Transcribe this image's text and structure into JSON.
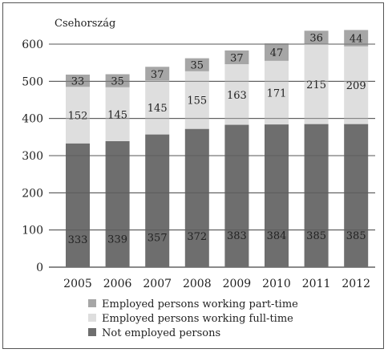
{
  "chart_data": {
    "type": "bar",
    "stacked": true,
    "title": "Csehország",
    "categories": [
      "2005",
      "2006",
      "2007",
      "2008",
      "2009",
      "2010",
      "2011",
      "2012"
    ],
    "series": [
      {
        "name": "Not employed persons",
        "values": [
          333,
          339,
          357,
          372,
          383,
          384,
          385,
          385
        ],
        "color": "#6e6e6e"
      },
      {
        "name": "Employed persons working full-time",
        "values": [
          152,
          145,
          145,
          155,
          163,
          171,
          215,
          209
        ],
        "color": "#dedede"
      },
      {
        "name": "Employed persons working part-time",
        "values": [
          33,
          35,
          37,
          35,
          37,
          47,
          36,
          44
        ],
        "color": "#a6a6a6"
      }
    ],
    "yticks": [
      0,
      100,
      200,
      300,
      400,
      500,
      600
    ],
    "ylim": [
      0,
      650
    ],
    "grid": true,
    "legend_position": "bottom",
    "legend_order": [
      2,
      1,
      0
    ]
  }
}
